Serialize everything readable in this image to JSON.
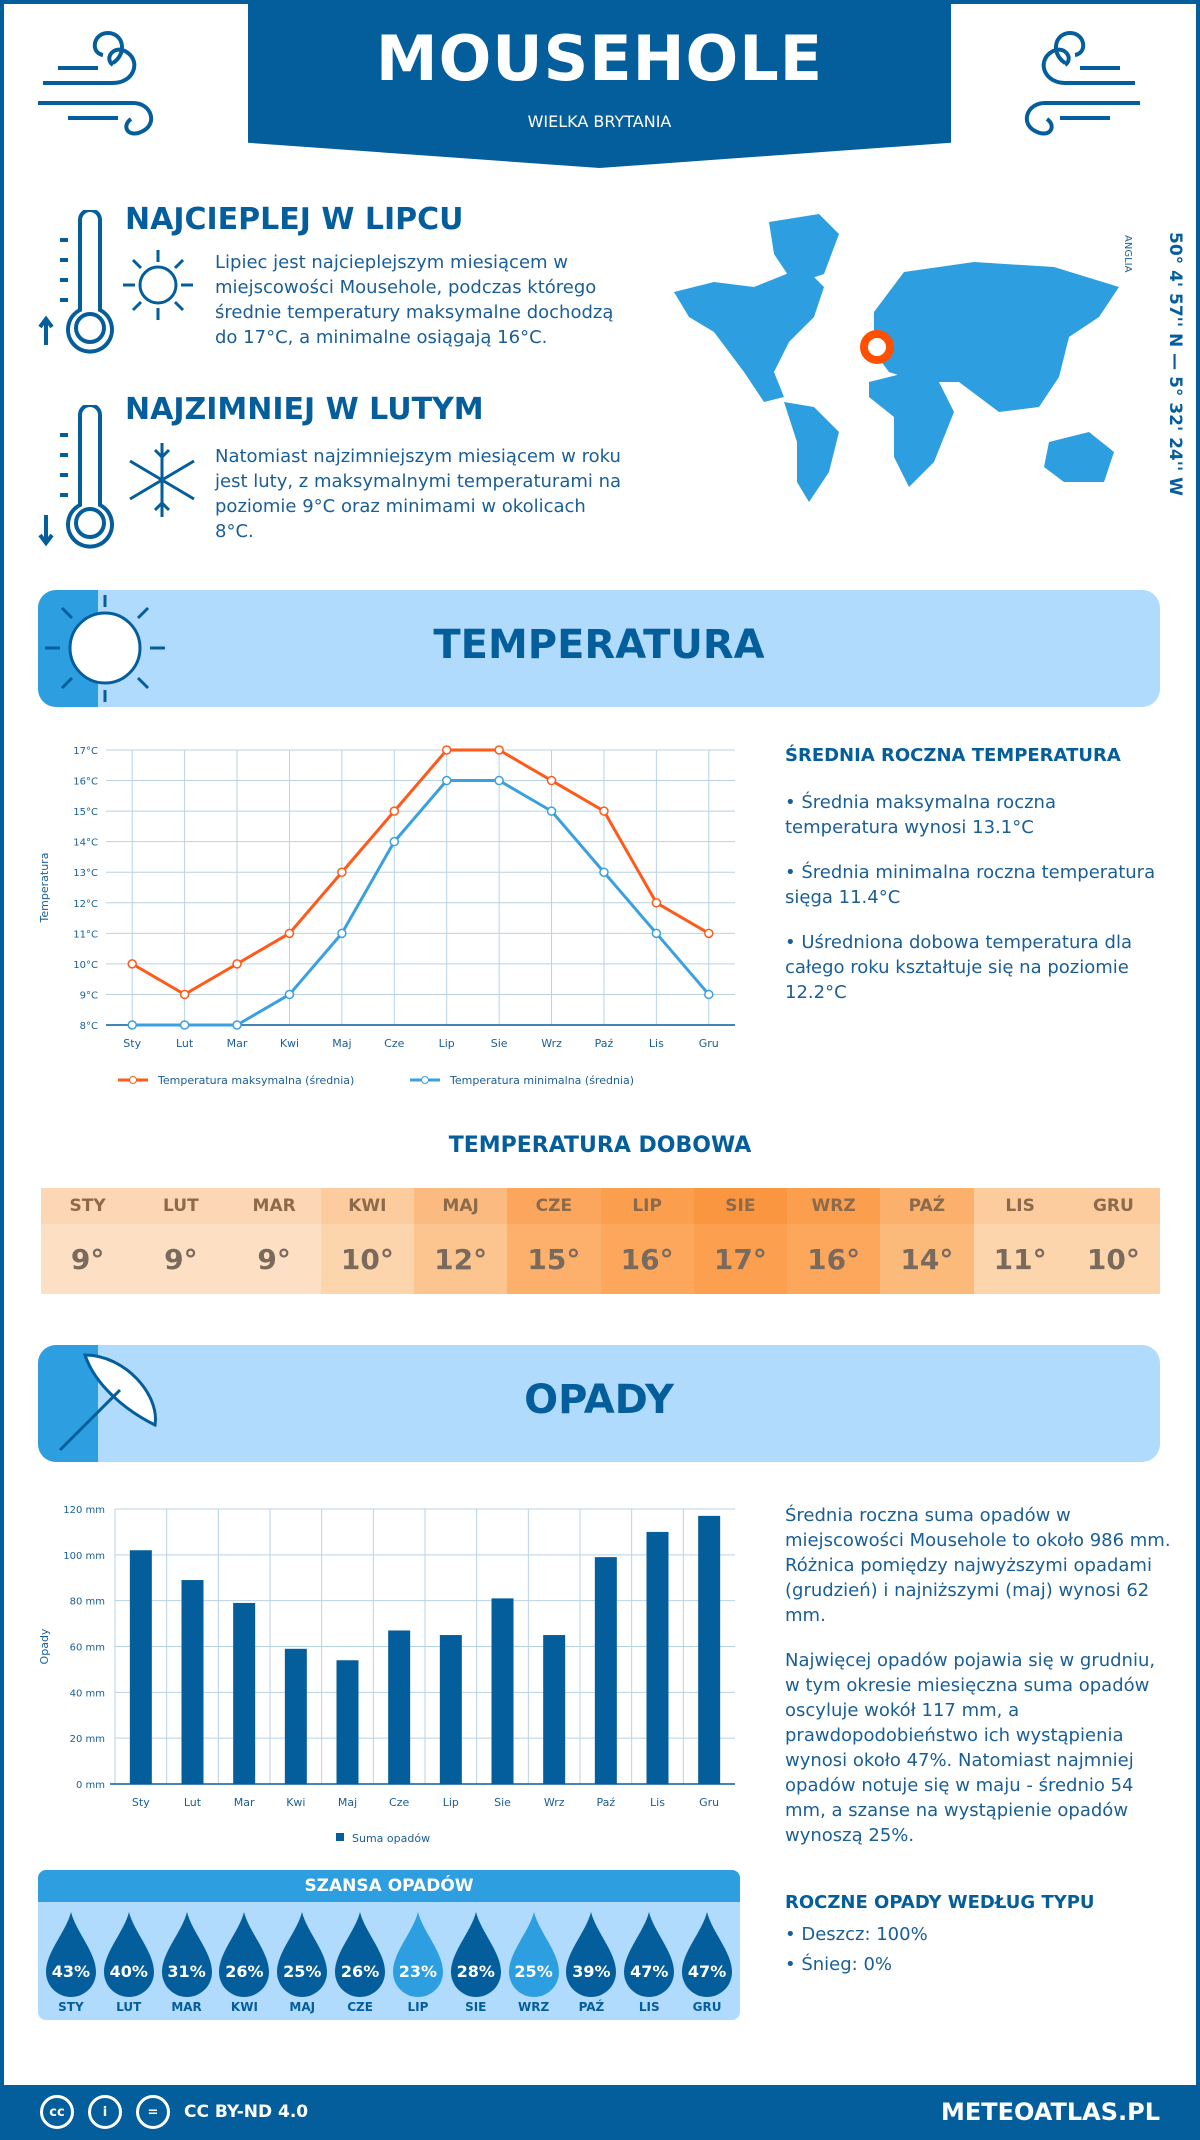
{
  "header": {
    "title": "MOUSEHOLE",
    "subtitle": "WIELKA BRYTANIA"
  },
  "warmest": {
    "heading": "NAJCIEPLEJ W LIPCU",
    "text": "Lipiec jest najcieplejszym miesiącem w miejscowości Mousehole, podczas którego średnie temperatury maksymalne dochodzą do 17°C, a minimalne osiągają 16°C."
  },
  "coldest": {
    "heading": "NAJZIMNIEJ W LUTYM",
    "text": "Natomiast najzimniejszym miesiącem w roku jest luty, z maksymalnymi temperaturami na poziomie 9°C oraz minimami w okolicach 8°C."
  },
  "map": {
    "coords": "50° 4' 57'' N — 5° 32' 24'' W",
    "region": "ANGLIA",
    "marker_color": "#ff4f00",
    "land_color": "#2d9fe0"
  },
  "temperature": {
    "title": "TEMPERATURA",
    "summary_heading": "ŚREDNIA ROCZNA TEMPERATURA",
    "bullets": [
      "• Średnia maksymalna roczna temperatura wynosi 13.1°C",
      "• Średnia minimalna roczna temperatura sięga 11.4°C",
      "• Uśredniona dobowa temperatura dla całego roku kształtuje się na poziomie 12.2°C"
    ],
    "daily_heading": "TEMPERATURA DOBOWA",
    "daily": [
      {
        "m": "STY",
        "v": "9°",
        "c": "#fde0c4",
        "h": "#fdd7b5"
      },
      {
        "m": "LUT",
        "v": "9°",
        "c": "#fde0c4",
        "h": "#fdd7b5"
      },
      {
        "m": "MAR",
        "v": "9°",
        "c": "#fde0c4",
        "h": "#fdd7b5"
      },
      {
        "m": "KWI",
        "v": "10°",
        "c": "#fdd5ad",
        "h": "#fccb9e"
      },
      {
        "m": "MAJ",
        "v": "12°",
        "c": "#fcc590",
        "h": "#fbbb80"
      },
      {
        "m": "CZE",
        "v": "15°",
        "c": "#fcb06b",
        "h": "#fba65c"
      },
      {
        "m": "LIP",
        "v": "16°",
        "c": "#fca75c",
        "h": "#fb9e4e"
      },
      {
        "m": "SIE",
        "v": "17°",
        "c": "#fc9f4e",
        "h": "#fb9640"
      },
      {
        "m": "WRZ",
        "v": "16°",
        "c": "#fca75c",
        "h": "#fb9e4e"
      },
      {
        "m": "PAŹ",
        "v": "14°",
        "c": "#fcba7a",
        "h": "#fbb06c"
      },
      {
        "m": "LIS",
        "v": "11°",
        "c": "#fdd5ad",
        "h": "#fccb9e"
      },
      {
        "m": "GRU",
        "v": "10°",
        "c": "#fdd5ad",
        "h": "#fccb9e"
      }
    ]
  },
  "precipitation": {
    "title": "OPADY",
    "text1": "Średnia roczna suma opadów w miejscowości Mousehole to około 986 mm. Różnica pomiędzy najwyższymi opadami (grudzień) i najniższymi (maj) wynosi 62 mm.",
    "text2": "Najwięcej opadów pojawia się w grudniu, w tym okresie miesięczna suma opadów oscyluje wokół 117 mm, a prawdopodobieństwo ich wystąpienia wynosi około 47%. Natomiast najmniej opadów notuje się w maju - średnio 54 mm, a szanse na wystąpienie opadów wynoszą 25%.",
    "chance_heading": "SZANSA OPADÓW",
    "chance": [
      {
        "m": "STY",
        "v": "43%",
        "c": "#055e9c"
      },
      {
        "m": "LUT",
        "v": "40%",
        "c": "#055e9c"
      },
      {
        "m": "MAR",
        "v": "31%",
        "c": "#055e9c"
      },
      {
        "m": "KWI",
        "v": "26%",
        "c": "#055e9c"
      },
      {
        "m": "MAJ",
        "v": "25%",
        "c": "#055e9c"
      },
      {
        "m": "CZE",
        "v": "26%",
        "c": "#055e9c"
      },
      {
        "m": "LIP",
        "v": "23%",
        "c": "#2d9fe0"
      },
      {
        "m": "SIE",
        "v": "28%",
        "c": "#055e9c"
      },
      {
        "m": "WRZ",
        "v": "25%",
        "c": "#2d9fe0"
      },
      {
        "m": "PAŹ",
        "v": "39%",
        "c": "#055e9c"
      },
      {
        "m": "LIS",
        "v": "47%",
        "c": "#055e9c"
      },
      {
        "m": "GRU",
        "v": "47%",
        "c": "#055e9c"
      }
    ],
    "type_heading": "ROCZNE OPADY WEDŁUG TYPU",
    "types": [
      "• Deszcz: 100%",
      "• Śnieg: 0%"
    ]
  },
  "footer": {
    "license": "CC BY-ND 4.0",
    "site": "METEOATLAS.PL",
    "icons": [
      "cc-icon",
      "by-icon",
      "nd-icon"
    ]
  },
  "chart_data": [
    {
      "type": "line",
      "categories": [
        "Sty",
        "Lut",
        "Mar",
        "Kwi",
        "Maj",
        "Cze",
        "Lip",
        "Sie",
        "Wrz",
        "Paź",
        "Lis",
        "Gru"
      ],
      "ylabel": "Temperatura",
      "ylim": [
        8,
        17
      ],
      "yticks": [
        "8°C",
        "9°C",
        "10°C",
        "11°C",
        "12°C",
        "13°C",
        "14°C",
        "15°C",
        "16°C",
        "17°C"
      ],
      "grid": true,
      "legend": "bottom",
      "series": [
        {
          "name": "Temperatura maksymalna (średnia)",
          "color": "#ff5a1a",
          "values": [
            10,
            9,
            10,
            11,
            13,
            15,
            17,
            17,
            16,
            15,
            12,
            11
          ]
        },
        {
          "name": "Temperatura minimalna (średnia)",
          "color": "#3aa0e0",
          "values": [
            8,
            8,
            8,
            9,
            11,
            14,
            16,
            16,
            15,
            13,
            11,
            9
          ]
        }
      ]
    },
    {
      "type": "bar",
      "categories": [
        "Sty",
        "Lut",
        "Mar",
        "Kwi",
        "Maj",
        "Cze",
        "Lip",
        "Sie",
        "Wrz",
        "Paź",
        "Lis",
        "Gru"
      ],
      "ylabel": "Opady",
      "ylim": [
        0,
        120
      ],
      "yticks": [
        "0 mm",
        "20 mm",
        "40 mm",
        "60 mm",
        "80 mm",
        "100 mm",
        "120 mm"
      ],
      "grid": true,
      "legend": "bottom",
      "series": [
        {
          "name": "Suma opadów",
          "color": "#055e9c",
          "values": [
            102,
            89,
            79,
            59,
            54,
            67,
            65,
            81,
            65,
            99,
            110,
            117
          ]
        }
      ]
    }
  ]
}
